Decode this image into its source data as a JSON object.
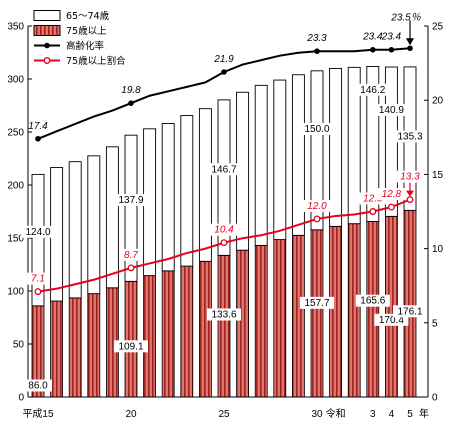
{
  "chart_data": {
    "type": "bar",
    "stacked": true,
    "y_left_unit": "万人",
    "y_left_ticks": [
      "0",
      "50",
      "100",
      "150",
      "200",
      "250",
      "300",
      "350"
    ],
    "y_left_range": [
      0,
      350
    ],
    "y_right_ticks": [
      "0",
      "5",
      "10",
      "15",
      "20",
      "25"
    ],
    "y_right_range": [
      0,
      25
    ],
    "x_tick_labels": [
      {
        "index": 0,
        "text": "平成15"
      },
      {
        "index": 5,
        "text": "20"
      },
      {
        "index": 10,
        "text": "25"
      },
      {
        "index": 15,
        "text": "30"
      },
      {
        "index": 16,
        "text": "令和"
      },
      {
        "index": 18,
        "text": "3"
      },
      {
        "index": 19,
        "text": "4"
      },
      {
        "index": 20,
        "text": "5"
      }
    ],
    "x_unit": "年",
    "legend": [
      {
        "name": "65～74歳",
        "kind": "bar-white"
      },
      {
        "name": "75歳以上",
        "kind": "bar-red"
      },
      {
        "name": "高齢化率",
        "kind": "line-black"
      },
      {
        "name": "75歳以上割合",
        "kind": "line-red"
      }
    ],
    "legend_position": "top-left",
    "grid": false,
    "series": [
      {
        "name": "75歳以上",
        "axis": "left",
        "values": [
          86.0,
          90.5,
          93.5,
          97.5,
          103.0,
          109.1,
          114.5,
          119.0,
          123.5,
          128.0,
          133.6,
          138.5,
          143.0,
          148.5,
          152.5,
          157.7,
          161.0,
          163.5,
          165.6,
          170.4,
          176.1
        ]
      },
      {
        "name": "65～74歳",
        "axis": "left",
        "values": [
          124.0,
          126.0,
          128.5,
          130.0,
          133.0,
          137.9,
          138.5,
          139.0,
          142.0,
          144.0,
          146.7,
          149.0,
          151.0,
          150.5,
          151.5,
          150.0,
          149.0,
          147.5,
          146.2,
          140.9,
          135.3
        ]
      },
      {
        "name": "高齢化率",
        "axis": "right",
        "values": [
          17.4,
          17.9,
          18.4,
          18.9,
          19.3,
          19.8,
          20.3,
          20.6,
          20.9,
          21.2,
          21.9,
          22.4,
          22.7,
          23.0,
          23.2,
          23.3,
          23.3,
          23.3,
          23.4,
          23.4,
          23.5
        ]
      },
      {
        "name": "75歳以上割合",
        "axis": "right",
        "values": [
          7.1,
          7.3,
          7.6,
          7.9,
          8.3,
          8.7,
          9.0,
          9.3,
          9.7,
          10.0,
          10.4,
          10.7,
          10.9,
          11.2,
          11.6,
          12.0,
          12.2,
          12.3,
          12.5,
          12.8,
          13.3
        ]
      }
    ],
    "data_labels": {
      "old_bar": [
        {
          "index": 0,
          "text": "86.0"
        },
        {
          "index": 5,
          "text": "109.1"
        },
        {
          "index": 10,
          "text": "133.6"
        },
        {
          "index": 15,
          "text": "157.7"
        },
        {
          "index": 18,
          "text": "165.6"
        },
        {
          "index": 19,
          "text": "170.4"
        },
        {
          "index": 20,
          "text": "176.1"
        }
      ],
      "young_bar": [
        {
          "index": 0,
          "text": "124.0"
        },
        {
          "index": 5,
          "text": "137.9"
        },
        {
          "index": 10,
          "text": "146.7"
        },
        {
          "index": 15,
          "text": "150.0"
        },
        {
          "index": 18,
          "text": "146.2"
        },
        {
          "index": 19,
          "text": "140.9"
        },
        {
          "index": 20,
          "text": "135.3"
        }
      ],
      "rate": [
        {
          "index": 0,
          "text": "17.4"
        },
        {
          "index": 5,
          "text": "19.8"
        },
        {
          "index": 10,
          "text": "21.9"
        },
        {
          "index": 15,
          "text": "23.3"
        },
        {
          "index": 18,
          "text": "23.4"
        },
        {
          "index": 19,
          "text": "23.4"
        },
        {
          "index": 20,
          "text": "23.5％"
        }
      ],
      "ratio": [
        {
          "index": 0,
          "text": "7.1"
        },
        {
          "index": 5,
          "text": "8.7"
        },
        {
          "index": 10,
          "text": "10.4"
        },
        {
          "index": 15,
          "text": "12.0"
        },
        {
          "index": 18,
          "text": "12.5"
        },
        {
          "index": 19,
          "text": "12.8"
        },
        {
          "index": 20,
          "text": "13.3"
        }
      ]
    },
    "colors": {
      "old_bar": "#e0746e",
      "young_bar": "#ffffff",
      "rate_line": "#000000",
      "ratio_line": "#e8001c",
      "axis": "#000000"
    }
  }
}
